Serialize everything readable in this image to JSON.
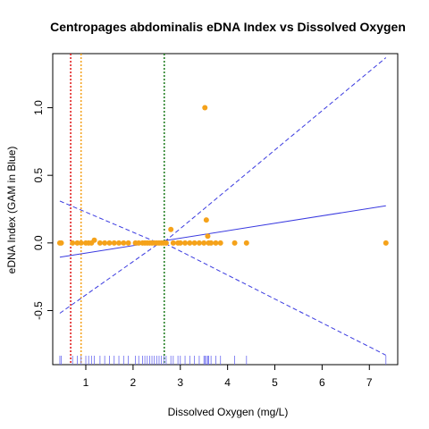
{
  "chart_data": {
    "type": "scatter",
    "title": "Centropages abdominalis eDNA Index vs Dissolved Oxygen",
    "xlabel": "Dissolved Oxygen (mg/L)",
    "ylabel": "eDNA Index (GAM in Blue)",
    "xlim": [
      0.3,
      7.6
    ],
    "ylim": [
      -0.9,
      1.4
    ],
    "x_ticks": [
      1,
      2,
      3,
      4,
      5,
      6,
      7
    ],
    "y_ticks": [
      -0.5,
      0.0,
      0.5,
      1.0
    ],
    "x_tick_labels": [
      "1",
      "2",
      "3",
      "4",
      "5",
      "6",
      "7"
    ],
    "y_tick_labels": [
      "-0.5",
      "0.0",
      "0.5",
      "1.0"
    ],
    "grid": false,
    "colors": {
      "points": "#f5a21a",
      "gam": "#3a3ae0",
      "vline_red": "#e01010",
      "vline_orange": "#f5a21a",
      "vline_green": "#1a7a1a",
      "rug": "#6b6bf0"
    },
    "points": [
      {
        "x": 0.45,
        "y": 0.0
      },
      {
        "x": 0.48,
        "y": 0.0
      },
      {
        "x": 0.72,
        "y": 0.0
      },
      {
        "x": 0.82,
        "y": 0.0
      },
      {
        "x": 0.9,
        "y": 0.0
      },
      {
        "x": 1.0,
        "y": 0.0
      },
      {
        "x": 1.06,
        "y": 0.0
      },
      {
        "x": 1.12,
        "y": 0.0
      },
      {
        "x": 1.18,
        "y": 0.02
      },
      {
        "x": 1.3,
        "y": 0.0
      },
      {
        "x": 1.4,
        "y": 0.0
      },
      {
        "x": 1.5,
        "y": 0.0
      },
      {
        "x": 1.6,
        "y": 0.0
      },
      {
        "x": 1.7,
        "y": 0.0
      },
      {
        "x": 1.8,
        "y": 0.0
      },
      {
        "x": 1.9,
        "y": 0.0
      },
      {
        "x": 2.05,
        "y": 0.0
      },
      {
        "x": 2.12,
        "y": 0.0
      },
      {
        "x": 2.2,
        "y": 0.0
      },
      {
        "x": 2.25,
        "y": 0.0
      },
      {
        "x": 2.3,
        "y": 0.0
      },
      {
        "x": 2.35,
        "y": 0.0
      },
      {
        "x": 2.4,
        "y": 0.0
      },
      {
        "x": 2.45,
        "y": 0.0
      },
      {
        "x": 2.5,
        "y": 0.0
      },
      {
        "x": 2.55,
        "y": 0.0
      },
      {
        "x": 2.6,
        "y": 0.0
      },
      {
        "x": 2.65,
        "y": 0.0
      },
      {
        "x": 2.7,
        "y": 0.0
      },
      {
        "x": 2.8,
        "y": 0.1
      },
      {
        "x": 2.85,
        "y": 0.0
      },
      {
        "x": 2.95,
        "y": 0.0
      },
      {
        "x": 3.0,
        "y": 0.0
      },
      {
        "x": 3.1,
        "y": 0.0
      },
      {
        "x": 3.2,
        "y": 0.0
      },
      {
        "x": 3.3,
        "y": 0.0
      },
      {
        "x": 3.4,
        "y": 0.0
      },
      {
        "x": 3.5,
        "y": 0.0
      },
      {
        "x": 3.52,
        "y": 1.0
      },
      {
        "x": 3.55,
        "y": 0.17
      },
      {
        "x": 3.58,
        "y": 0.05
      },
      {
        "x": 3.6,
        "y": 0.0
      },
      {
        "x": 3.65,
        "y": 0.0
      },
      {
        "x": 3.75,
        "y": 0.0
      },
      {
        "x": 3.85,
        "y": 0.0
      },
      {
        "x": 4.15,
        "y": 0.0
      },
      {
        "x": 4.4,
        "y": 0.0
      },
      {
        "x": 7.35,
        "y": 0.0
      }
    ],
    "gam_fit": [
      [
        0.45,
        -0.105
      ],
      [
        7.35,
        0.275
      ]
    ],
    "gam_ci_upper": [
      [
        0.45,
        0.31
      ],
      [
        2.6,
        -0.01
      ],
      [
        7.35,
        1.37
      ]
    ],
    "gam_ci_lower": [
      [
        0.45,
        -0.52
      ],
      [
        2.6,
        0.01
      ],
      [
        7.35,
        -0.83
      ]
    ],
    "vlines": [
      {
        "x": 0.68,
        "color": "vline_red"
      },
      {
        "x": 0.9,
        "color": "vline_orange"
      },
      {
        "x": 2.66,
        "color": "vline_green"
      }
    ],
    "rug": [
      0.45,
      0.48,
      0.72,
      0.82,
      0.9,
      1.0,
      1.06,
      1.12,
      1.18,
      1.3,
      1.4,
      1.5,
      1.6,
      1.7,
      1.8,
      1.9,
      2.05,
      2.12,
      2.2,
      2.25,
      2.3,
      2.35,
      2.4,
      2.45,
      2.5,
      2.55,
      2.6,
      2.65,
      2.7,
      2.8,
      2.85,
      2.95,
      3.0,
      3.1,
      3.2,
      3.3,
      3.4,
      3.5,
      3.52,
      3.55,
      3.58,
      3.6,
      3.65,
      3.75,
      3.85,
      4.15,
      4.4,
      7.35
    ]
  }
}
